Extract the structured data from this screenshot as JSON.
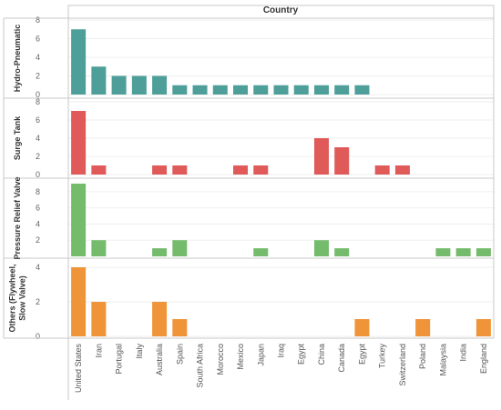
{
  "chart_data": {
    "type": "bar",
    "column_header": "Country",
    "categories": [
      "United States",
      "Iran",
      "Portugal",
      "Italy",
      "Australia",
      "Spain",
      "South Africa",
      "Morocco",
      "Mexico",
      "Japan",
      "Iraq",
      "Egypt",
      "China",
      "Canada",
      "Egypt",
      "Turkey",
      "Switzerland",
      "Poland",
      "Malaysia",
      "India",
      "England"
    ],
    "series": [
      {
        "name": "Hydro-Pneumatic",
        "name_lines": [
          "Hydro-Pneumatic"
        ],
        "color": "#4e9f99",
        "ylim": [
          0,
          8
        ],
        "ticks": [
          0,
          2,
          4,
          6,
          8
        ],
        "values": [
          7,
          3,
          2,
          2,
          2,
          1,
          1,
          1,
          1,
          1,
          1,
          1,
          1,
          1,
          1,
          0,
          0,
          0,
          0,
          0,
          0
        ]
      },
      {
        "name": "Surge Tank",
        "name_lines": [
          "Surge Tank"
        ],
        "color": "#e05a5a",
        "ylim": [
          0,
          8
        ],
        "ticks": [
          0,
          2,
          4,
          6,
          8
        ],
        "values": [
          7,
          1,
          0,
          0,
          1,
          1,
          0,
          0,
          1,
          1,
          0,
          0,
          4,
          3,
          0,
          1,
          1,
          0,
          0,
          0,
          0
        ]
      },
      {
        "name": "Pressure Relief Valve",
        "name_lines": [
          "Pressure Relief Valve"
        ],
        "color": "#75bb6c",
        "ylim": [
          0,
          9
        ],
        "ticks": [
          2,
          4,
          6,
          8
        ],
        "values": [
          9,
          2,
          0,
          0,
          1,
          2,
          0,
          0,
          0,
          1,
          0,
          0,
          2,
          1,
          0,
          0,
          0,
          0,
          1,
          1,
          1
        ]
      },
      {
        "name": "Others (Flywheel, Slow Valve)",
        "name_lines": [
          "Others (Flywheel,",
          "Slow Valve)"
        ],
        "color": "#f0943a",
        "ylim": [
          0,
          4
        ],
        "ticks": [
          0,
          2,
          4
        ],
        "values": [
          4,
          2,
          0,
          0,
          2,
          1,
          0,
          0,
          0,
          0,
          0,
          0,
          0,
          0,
          1,
          0,
          0,
          1,
          0,
          0,
          1
        ]
      }
    ]
  }
}
